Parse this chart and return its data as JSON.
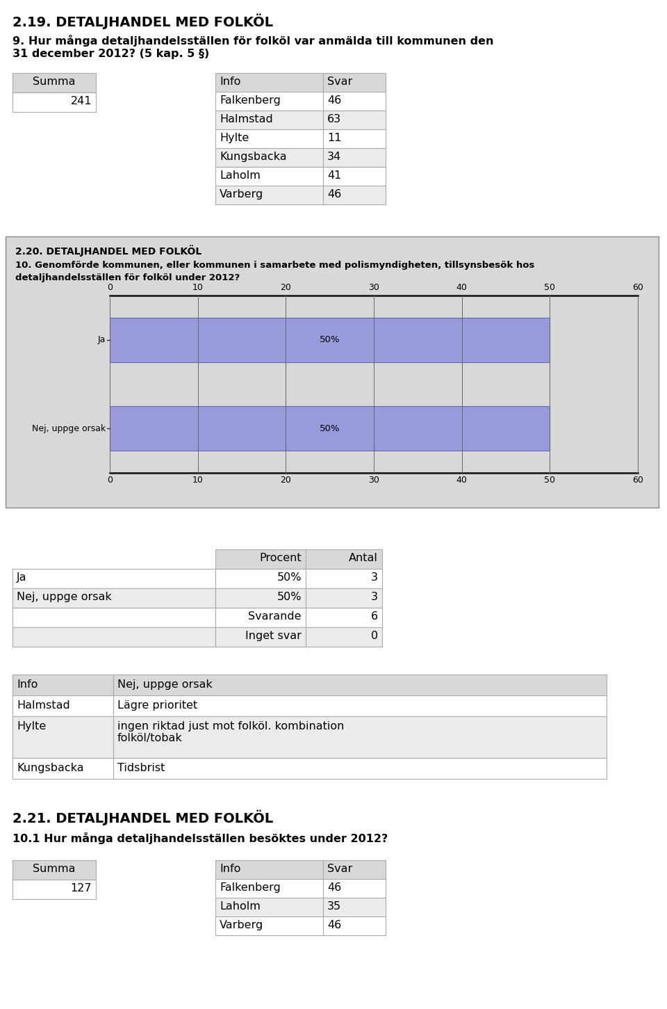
{
  "title1": "2.19. DETALJHANDEL MED FOLKÖL",
  "question1_line1": "9. Hur många detaljhandelsställen för folköl var anmälda till kommunen den",
  "question1_line2": "31 december 2012? (5 kap. 5 §)",
  "summa1_label": "Summa",
  "summa1_value": "241",
  "table1_headers": [
    "Info",
    "Svar"
  ],
  "table1_rows": [
    [
      "Falkenberg",
      "46"
    ],
    [
      "Halmstad",
      "63"
    ],
    [
      "Hylte",
      "11"
    ],
    [
      "Kungsbacka",
      "34"
    ],
    [
      "Laholm",
      "41"
    ],
    [
      "Varberg",
      "46"
    ]
  ],
  "chart_box_title": "2.20. DETALJHANDEL MED FOLKÖL",
  "chart_question_line1": "10. Genomförde kommunen, eller kommunen i samarbete med polismyndigheten, tillsynsbesök hos",
  "chart_question_line2": "detaljhandelsställen för folköl under 2012?",
  "chart_categories": [
    "Ja",
    "Nej, uppge orsak"
  ],
  "chart_values": [
    50,
    50
  ],
  "chart_xlim": [
    0,
    60
  ],
  "chart_xticks": [
    0,
    10,
    20,
    30,
    40,
    50,
    60
  ],
  "chart_bar_color": "#9999dd",
  "chart_bg_color": "#d8d8d8",
  "table2_headers": [
    "Procent",
    "Antal"
  ],
  "table2_row_labels": [
    "Ja",
    "Nej, uppge orsak",
    "",
    ""
  ],
  "table2_col2": [
    "50%",
    "50%",
    "Svarande",
    "Inget svar"
  ],
  "table2_col3": [
    "3",
    "3",
    "6",
    "0"
  ],
  "table3_headers": [
    "Info",
    "Nej, uppge orsak"
  ],
  "table3_rows": [
    [
      "Halmstad",
      "Lägre prioritet"
    ],
    [
      "Hylte",
      "ingen riktad just mot folköl. kombination\nfolköl/tobak"
    ],
    [
      "Kungsbacka",
      "Tidsbrist"
    ]
  ],
  "title2": "2.21. DETALJHANDEL MED FOLKÖL",
  "question2": "10.1 Hur många detaljhandelsställen besöktes under 2012?",
  "summa2_label": "Summa",
  "summa2_value": "127",
  "table4_headers": [
    "Info",
    "Svar"
  ],
  "table4_rows": [
    [
      "Falkenberg",
      "46"
    ],
    [
      "Laholm",
      "35"
    ],
    [
      "Varberg",
      "46"
    ]
  ],
  "bg_color": "#ffffff",
  "header_bg": "#d8d8d8",
  "cell_bg_white": "#ffffff",
  "cell_bg_light": "#ebebeb",
  "border_color": "#aaaaaa",
  "text_color": "#000000",
  "font_size": 11.5,
  "title_font_size": 14
}
